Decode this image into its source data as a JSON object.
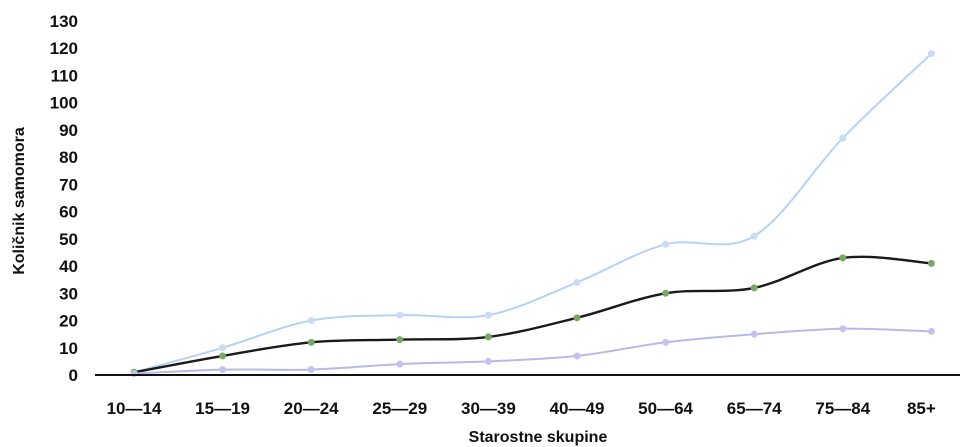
{
  "chart_data": {
    "type": "line",
    "title": "",
    "xlabel": "Starostne skupine",
    "ylabel": "Količnik samomora",
    "categories": [
      "10—14",
      "15—19",
      "20—24",
      "25—29",
      "30—39",
      "40—49",
      "50—64",
      "65—74",
      "75—84",
      "85+"
    ],
    "ylim": [
      0,
      130
    ],
    "yticks": [
      0,
      10,
      20,
      30,
      40,
      50,
      60,
      70,
      80,
      90,
      100,
      110,
      120,
      130
    ],
    "grid": false,
    "legend": "none",
    "series": [
      {
        "values": [
          1,
          10,
          20,
          22,
          22,
          34,
          48,
          51,
          87,
          118
        ],
        "color": "#b7d3f2",
        "marker_color": "#c9dcf3"
      },
      {
        "values": [
          1,
          7,
          12,
          13,
          14,
          21,
          30,
          32,
          43,
          41
        ],
        "color": "#1a1a1a",
        "marker_color": "#7aa864"
      },
      {
        "values": [
          0.5,
          2,
          2,
          4,
          5,
          7,
          12,
          15,
          17,
          16
        ],
        "color": "#b9b9e8",
        "marker_color": "#c3c3ee"
      }
    ]
  }
}
